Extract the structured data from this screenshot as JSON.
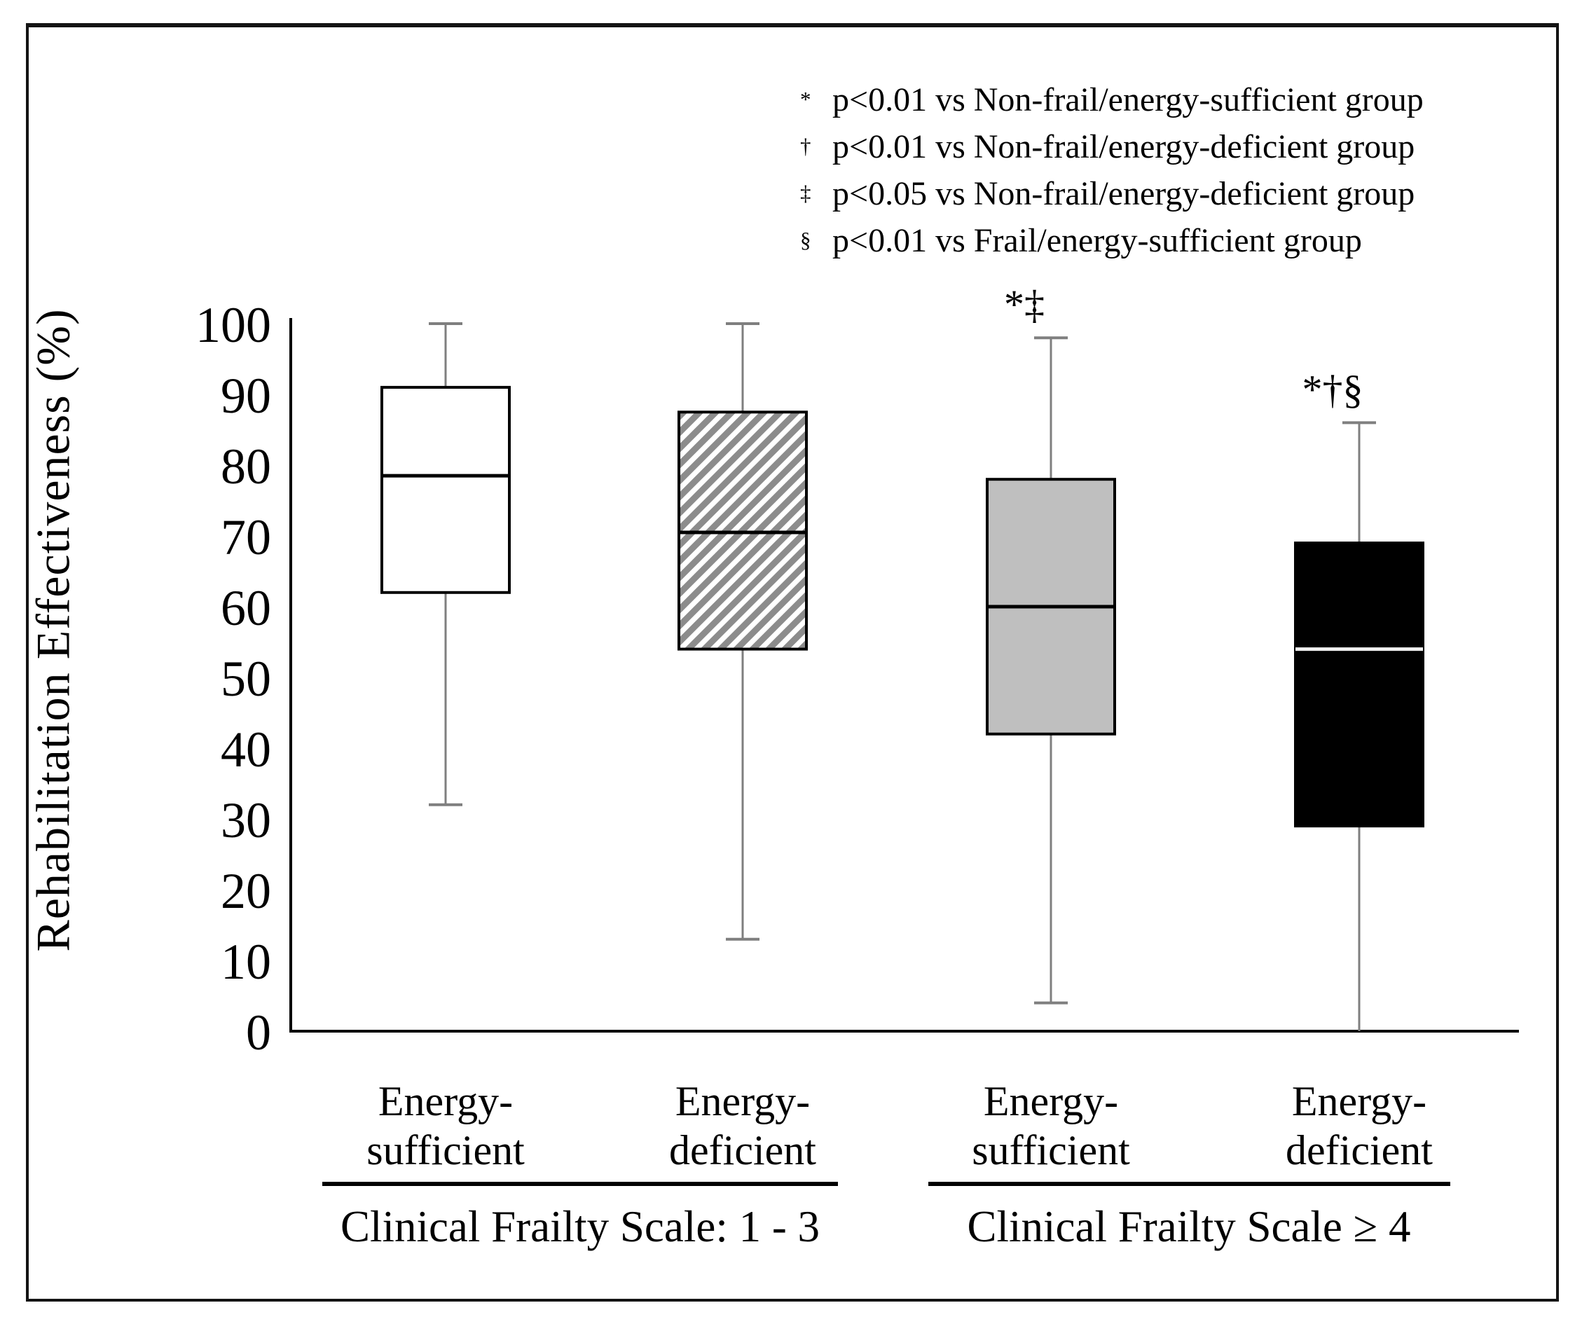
{
  "legend": {
    "items": [
      {
        "symbol": "*",
        "text": "p<0.01 vs Non-frail/energy-sufficient group"
      },
      {
        "symbol": "†",
        "text": "p<0.01 vs Non-frail/energy-deficient group"
      },
      {
        "symbol": "‡",
        "text": "p<0.05 vs Non-frail/energy-deficient group"
      },
      {
        "symbol": "§",
        "text": "p<0.01 vs Frail/energy-sufficient group"
      }
    ]
  },
  "chart_data": {
    "type": "box",
    "title": "",
    "ylabel": "Rehabilitation Effectiveness (%)",
    "xlabel": "",
    "ylim": [
      0,
      100
    ],
    "yticks": [
      0,
      10,
      20,
      30,
      40,
      50,
      60,
      70,
      80,
      90,
      100
    ],
    "grid": false,
    "legend_position": "top-right",
    "series": [
      {
        "category_line1": "Energy-",
        "category_line2": "sufficient",
        "group": "Clinical Frailty Scale: 1 - 3",
        "fill_style": "white",
        "min": 32,
        "q1": 62,
        "median": 78.5,
        "q3": 91,
        "max": 100,
        "annotation": ""
      },
      {
        "category_line1": "Energy-",
        "category_line2": "deficient",
        "group": "Clinical Frailty Scale: 1 - 3",
        "fill_style": "hatched",
        "min": 13,
        "q1": 54,
        "median": 70.5,
        "q3": 87.5,
        "max": 100,
        "annotation": ""
      },
      {
        "category_line1": "Energy-",
        "category_line2": "sufficient",
        "group": "Clinical Frailty Scale ≥ 4",
        "fill_style": "gray",
        "min": 4,
        "q1": 42,
        "median": 60,
        "q3": 78,
        "max": 98,
        "annotation": "*‡"
      },
      {
        "category_line1": "Energy-",
        "category_line2": "deficient",
        "group": "Clinical Frailty Scale ≥ 4",
        "fill_style": "black",
        "min": 0,
        "q1": 29,
        "median": 54,
        "q3": 69,
        "max": 86,
        "annotation": "*†§"
      }
    ],
    "group_labels": [
      "Clinical Frailty Scale: 1 - 3",
      "Clinical Frailty Scale ≥ 4"
    ],
    "colors": {
      "axis": "#000000",
      "whisker": "#7f7f7f",
      "box_border": "#000000",
      "gray_fill": "#bfbfbf",
      "black_fill": "#000000",
      "hatch_stroke": "#8c8c8c",
      "median_dark": "#000000",
      "median_light": "#f0f0f0"
    }
  }
}
